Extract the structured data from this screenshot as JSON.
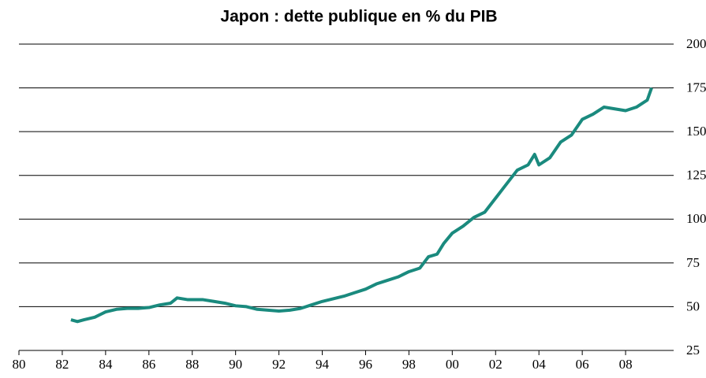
{
  "chart_data": {
    "type": "line",
    "title": "Japon : dette publique en % du PIB",
    "x": [
      1982.4,
      1982.7,
      1983,
      1983.5,
      1984,
      1984.5,
      1985,
      1985.5,
      1986,
      1986.5,
      1987,
      1987.3,
      1987.8,
      1988,
      1988.5,
      1989,
      1989.5,
      1990,
      1990.5,
      1991,
      1991.5,
      1992,
      1992.5,
      1993,
      1993.5,
      1994,
      1994.5,
      1995,
      1995.5,
      1996,
      1996.5,
      1997,
      1997.5,
      1998,
      1998.5,
      1998.9,
      1999.3,
      1999.6,
      2000,
      2000.5,
      2001,
      2001.5,
      2002,
      2002.5,
      2003,
      2003.5,
      2003.8,
      2004,
      2004.5,
      2005,
      2005.5,
      2006,
      2006.5,
      2007,
      2007.5,
      2008,
      2008.5,
      2009,
      2009.2
    ],
    "series": [
      {
        "name": "Dette publique",
        "color": "#1a8a7e",
        "values": [
          42.5,
          41.5,
          42.5,
          44,
          47,
          48.5,
          49,
          49,
          49.5,
          51,
          52,
          55,
          54,
          54,
          54,
          53,
          52,
          50.5,
          50,
          48.5,
          48,
          47.5,
          48,
          49,
          51,
          53,
          54.5,
          56,
          58,
          60,
          63,
          65,
          67,
          70,
          72,
          78.5,
          80,
          86,
          92,
          96,
          101,
          104,
          112,
          120,
          128,
          131,
          137,
          131,
          135,
          144,
          148,
          157,
          160,
          164,
          163,
          162,
          164,
          168,
          175
        ]
      }
    ],
    "xlim": [
      1980,
      2010
    ],
    "xticks": [
      {
        "value": 1980,
        "label": "80"
      },
      {
        "value": 1982,
        "label": "82"
      },
      {
        "value": 1984,
        "label": "84"
      },
      {
        "value": 1986,
        "label": "86"
      },
      {
        "value": 1988,
        "label": "88"
      },
      {
        "value": 1990,
        "label": "90"
      },
      {
        "value": 1992,
        "label": "92"
      },
      {
        "value": 1994,
        "label": "94"
      },
      {
        "value": 1996,
        "label": "96"
      },
      {
        "value": 1998,
        "label": "98"
      },
      {
        "value": 2000,
        "label": "00"
      },
      {
        "value": 2002,
        "label": "02"
      },
      {
        "value": 2004,
        "label": "04"
      },
      {
        "value": 2006,
        "label": "06"
      },
      {
        "value": 2008,
        "label": "08"
      }
    ],
    "ylim": [
      25,
      200
    ],
    "yticks": [
      25,
      50,
      75,
      100,
      125,
      150,
      175,
      200
    ],
    "grid": true
  }
}
